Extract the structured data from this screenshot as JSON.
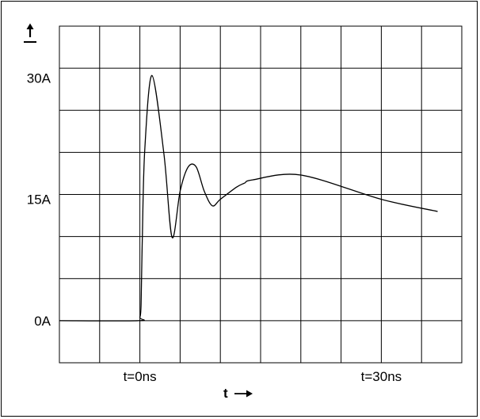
{
  "chart_data": {
    "type": "line",
    "ylabel_glyph": "I",
    "xlabel": "t",
    "y_ticks": [
      {
        "value": 0,
        "label": "0A"
      },
      {
        "value": 15,
        "label": "15A"
      },
      {
        "value": 30,
        "label": "30A"
      }
    ],
    "x_ticks": [
      {
        "value": 0,
        "label": "t=0ns"
      },
      {
        "value": 30,
        "label": "t=30ns"
      }
    ],
    "xlim": [
      -10,
      40
    ],
    "ylim": [
      -5.2,
      36.4
    ],
    "grid": true,
    "series": [
      {
        "x": [
          -10,
          -0.2,
          0,
          0.15,
          0.3,
          0.6,
          1.5,
          3.0,
          4.0,
          5.0,
          6.0,
          7.0,
          8.0,
          9.0,
          10.0,
          12.0,
          13.0,
          14.0,
          20.0,
          30.0,
          37.0
        ],
        "y": [
          0,
          0,
          0.4,
          2.0,
          10.0,
          21.0,
          30.3,
          20.5,
          10.3,
          16.0,
          19.0,
          19.0,
          16.0,
          14.2,
          15.0,
          16.5,
          17.0,
          17.4,
          18.0,
          15.0,
          13.5
        ]
      }
    ]
  }
}
